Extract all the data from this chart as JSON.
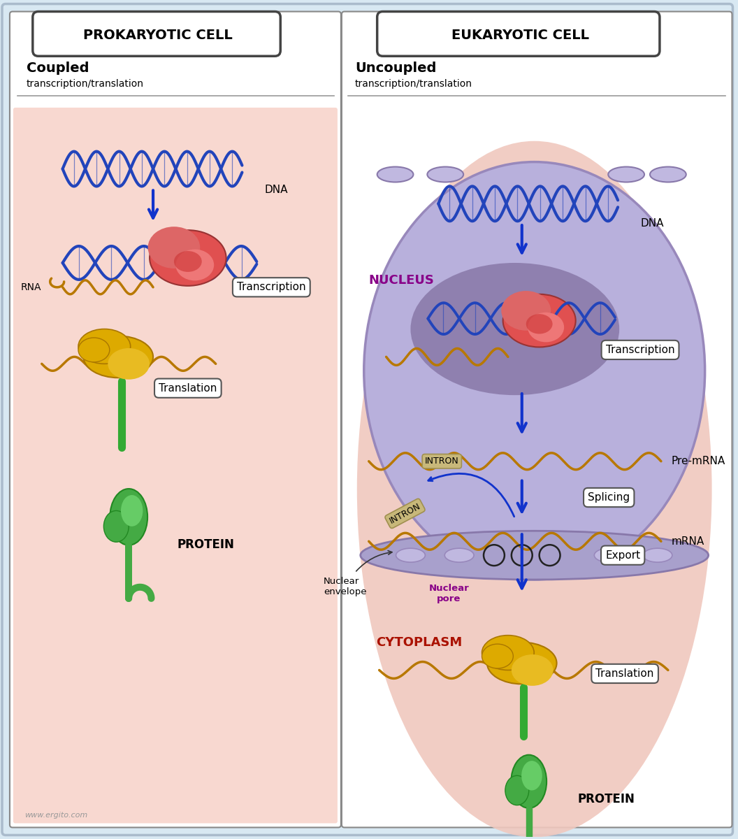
{
  "bg_color": "#d8e8f2",
  "left_bg": "#f8d8d0",
  "right_outer_bg": "#f0c8be",
  "nucleus_bg": "#b8b0dc",
  "nucleolus_bg": "#9080b8",
  "left_title": "PROKARYOTIC CELL",
  "right_title": "EUKARYOTIC CELL",
  "left_sub1": "Coupled",
  "left_sub2": "transcription/translation",
  "right_sub1": "Uncoupled",
  "right_sub2": "transcription/translation",
  "dna_color": "#2244bb",
  "rna_color": "#b87800",
  "protein_color": "#44aa44",
  "ribosome_color": "#ddaa00",
  "polymerase_color": "#dd4444",
  "arrow_color": "#1133cc",
  "nucleus_label_color": "#880088",
  "cytoplasm_label_color": "#aa1100",
  "intron_bg": "#c8b87a",
  "intron_ec": "#a09050",
  "envelope_color": "#a8a0cc",
  "watermark": "www.ergito.com"
}
